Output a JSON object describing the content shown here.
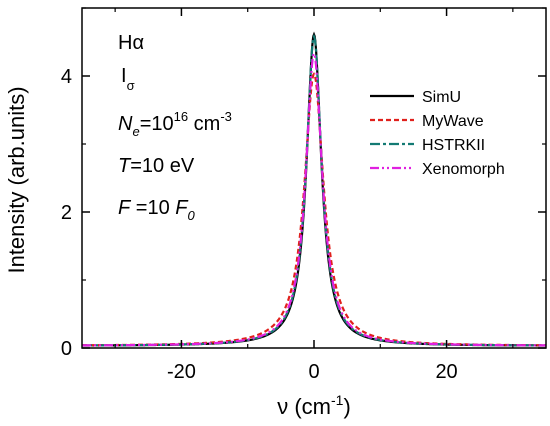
{
  "chart_data": {
    "type": "line",
    "xlabel_main": "ν (cm",
    "xlabel_sup": "-1",
    "xlabel_end": ")",
    "ylabel": "Intensity (arb.units)",
    "xlim": [
      -35,
      35
    ],
    "ylim": [
      0,
      5
    ],
    "xticks": [
      -20,
      0,
      20
    ],
    "yticks": [
      0,
      2,
      4
    ],
    "legend_position": "right",
    "annotations": {
      "line1": "Hα",
      "line2_main": "I",
      "line2_sub": "σ",
      "ne_sym": "N",
      "ne_sub": "e",
      "ne_val": "=10",
      "ne_sup": "16",
      "ne_unit": " cm",
      "ne_unit_sup": "-3",
      "t_sym": "T",
      "t_val": "=10 eV",
      "f_sym": "F",
      "f_val": " =10 ",
      "f0_sym": "F",
      "f0_sub": "0"
    },
    "series": [
      {
        "name": "SimU",
        "color": "#000000",
        "dash": "solid",
        "peak": 4.58,
        "hwhm": 1.35
      },
      {
        "name": "MyWave",
        "color": "#e0201c",
        "dash": "dash",
        "peak": 4.0,
        "hwhm": 1.75
      },
      {
        "name": "HSTRKII",
        "color": "#137a73",
        "dash": "dashdot",
        "peak": 4.55,
        "hwhm": 1.4
      },
      {
        "name": "Xenomorph",
        "color": "#e020e0",
        "dash": "dashdotdot",
        "peak": 4.3,
        "hwhm": 1.5
      }
    ]
  }
}
